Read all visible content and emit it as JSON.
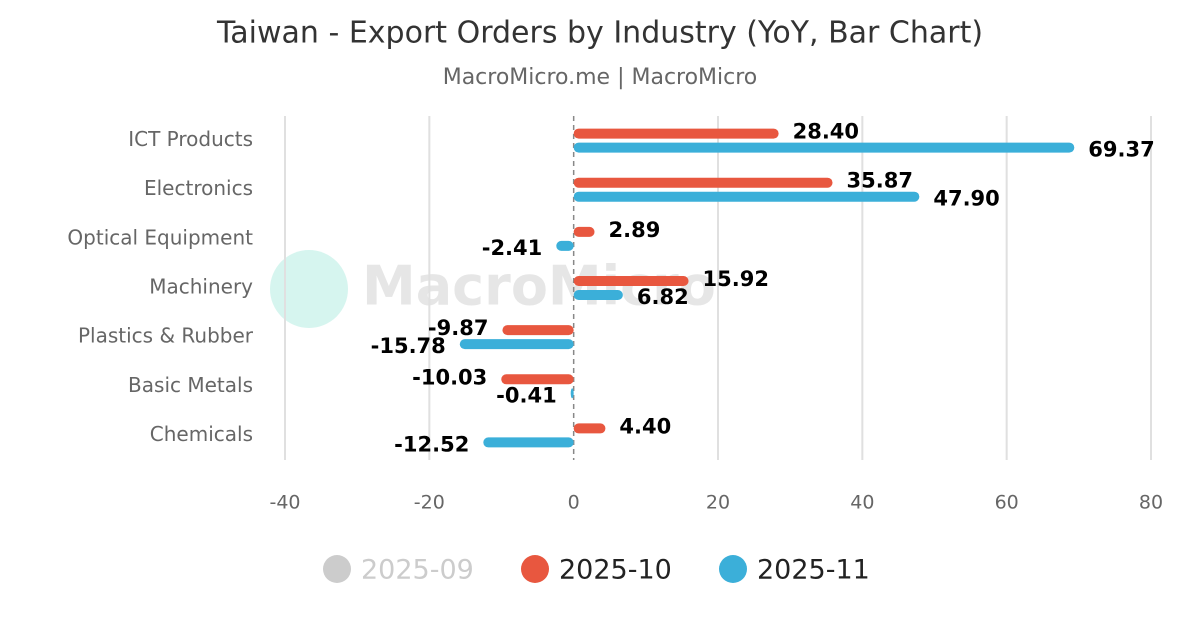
{
  "chart_data": {
    "type": "hbar",
    "title": "Taiwan - Export Orders by Industry (YoY, Bar Chart)",
    "subtitle": "MacroMicro.me | MacroMicro",
    "watermark": "MacroMicro",
    "categories": [
      "ICT Products",
      "Electronics",
      "Optical Equipment",
      "Machinery",
      "Plastics & Rubber",
      "Basic Metals",
      "Chemicals"
    ],
    "series": [
      {
        "name": "2025-09",
        "color": "#cccccc",
        "hidden": true,
        "values": [
          null,
          null,
          null,
          null,
          null,
          null,
          null
        ]
      },
      {
        "name": "2025-10",
        "color": "#e8573f",
        "values": [
          28.4,
          35.87,
          2.89,
          15.92,
          -9.87,
          -10.03,
          4.4
        ],
        "value_labels": [
          "28.40",
          "35.87",
          "2.89",
          "15.92",
          "-9.87",
          "-10.03",
          "4.40"
        ]
      },
      {
        "name": "2025-11",
        "color": "#3bafd9",
        "values": [
          69.37,
          47.9,
          -2.41,
          6.82,
          -15.78,
          -0.41,
          -12.52
        ],
        "value_labels": [
          "69.37",
          "47.90",
          "-2.41",
          "6.82",
          "-15.78",
          "-0.41",
          "-12.52"
        ]
      }
    ],
    "xlim": [
      -40,
      80
    ],
    "xticks": [
      -40,
      -20,
      0,
      20,
      40,
      60,
      80
    ],
    "grid": true,
    "legend": "bottom"
  }
}
